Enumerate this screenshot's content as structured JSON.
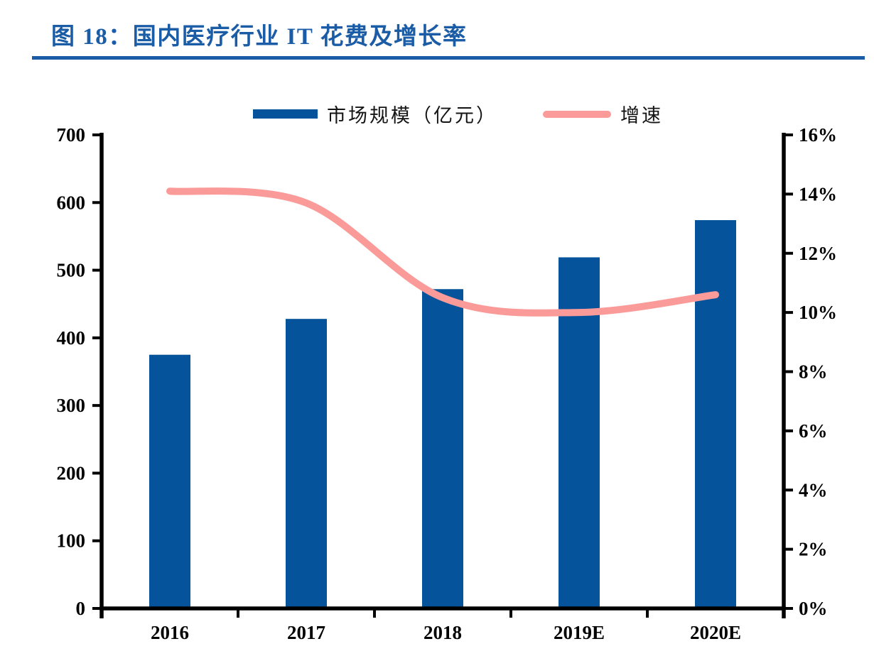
{
  "header": {
    "title": "图 18：国内医疗行业 IT 花费及增长率"
  },
  "legend": {
    "bar_label": "市场规模（亿元）",
    "line_label": "增速"
  },
  "chart_data": {
    "type": "bar",
    "subtype": "combo-bar-line",
    "title": "图 18：国内医疗行业 IT 花费及增长率",
    "categories": [
      "2016",
      "2017",
      "2018",
      "2019E",
      "2020E"
    ],
    "series": [
      {
        "name": "市场规模（亿元）",
        "type": "bar",
        "axis": "left",
        "values": [
          375,
          428,
          472,
          519,
          574
        ],
        "color": "#05549B"
      },
      {
        "name": "增速",
        "type": "line",
        "axis": "right",
        "values": [
          14.1,
          13.7,
          10.5,
          10.0,
          10.6
        ],
        "unit": "%",
        "color": "#FB9B99"
      }
    ],
    "left_axis": {
      "min": 0,
      "max": 700,
      "step": 100,
      "tick_labels": [
        "0",
        "100",
        "200",
        "300",
        "400",
        "500",
        "600",
        "700"
      ]
    },
    "right_axis": {
      "min": 0,
      "max": 16,
      "step": 2,
      "tick_labels": [
        "0%",
        "2%",
        "4%",
        "6%",
        "8%",
        "10%",
        "12%",
        "14%",
        "16%"
      ]
    },
    "grid": false,
    "legend_position": "top"
  },
  "colors": {
    "title": "#1B5CA6",
    "rule": "#1B5CA6",
    "axis": "#000000",
    "bar": "#05549B",
    "line": "#FB9B99",
    "legend_text": "#141414"
  }
}
